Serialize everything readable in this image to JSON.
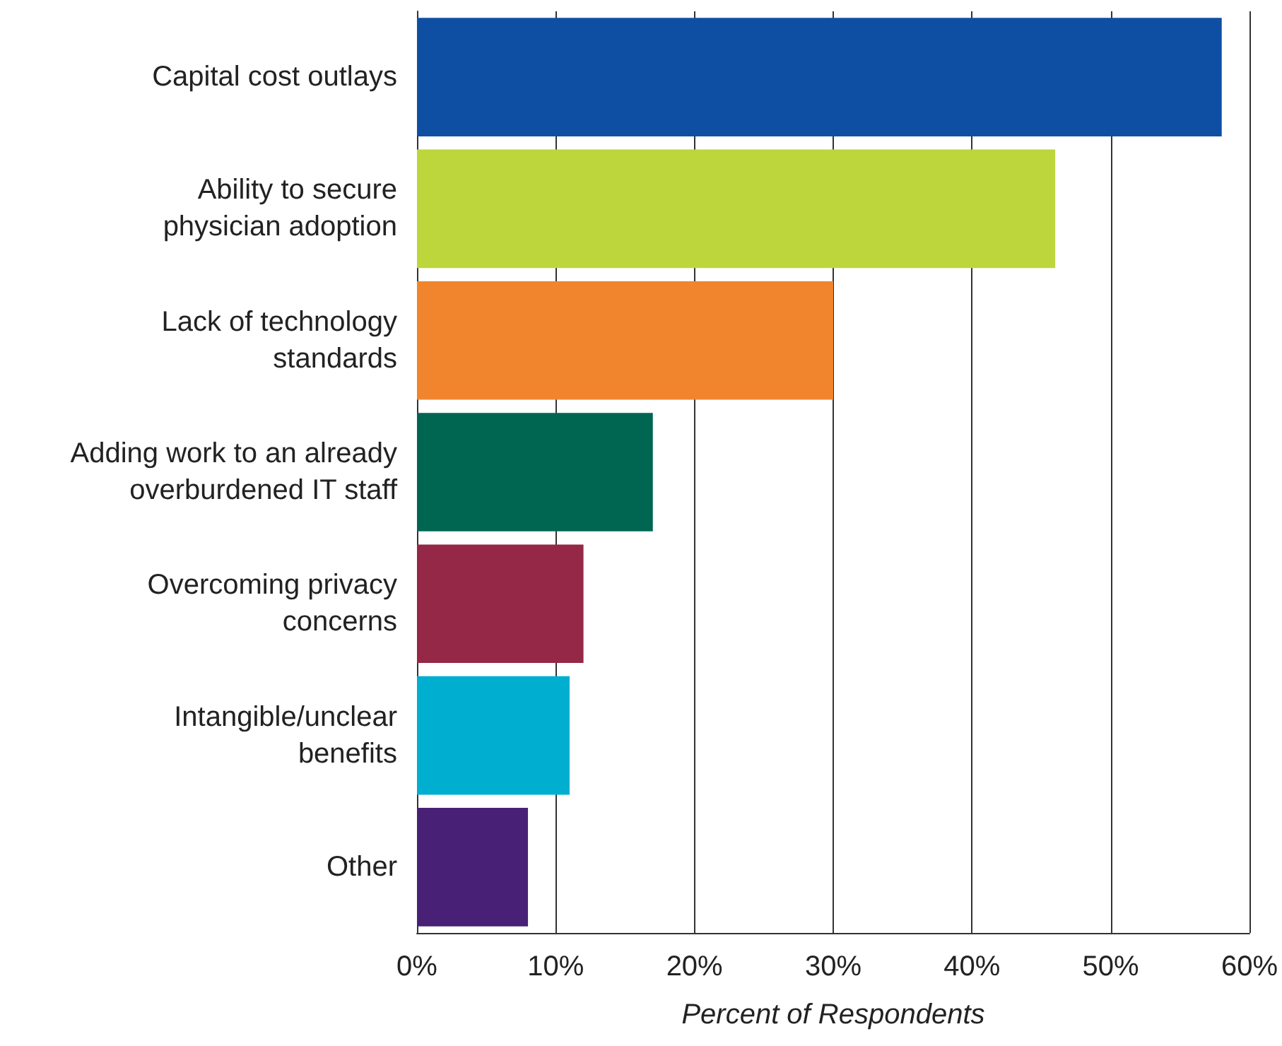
{
  "chart_data": {
    "type": "bar",
    "orientation": "horizontal",
    "xlabel": "Percent of Respondents",
    "categories": [
      "Capital cost outlays",
      "Ability to secure\nphysician adoption",
      "Lack of technology\nstandards",
      "Adding work to an already\noverburdened IT staff",
      "Overcoming privacy\nconcerns",
      "Intangible/unclear\nbenefits",
      "Other"
    ],
    "values": [
      58,
      46,
      30,
      17,
      12,
      11,
      8
    ],
    "colors": [
      "#0f4fa3",
      "#bdd63c",
      "#f0852d",
      "#006652",
      "#952846",
      "#00aed0",
      "#482177"
    ],
    "xlim": [
      0,
      60
    ],
    "xticks": [
      {
        "value": 0,
        "label": "0%"
      },
      {
        "value": 10,
        "label": "10%"
      },
      {
        "value": 20,
        "label": "20%"
      },
      {
        "value": 30,
        "label": "30%"
      },
      {
        "value": 40,
        "label": "40%"
      },
      {
        "value": 50,
        "label": "50%"
      },
      {
        "value": 60,
        "label": "60%"
      }
    ],
    "grid": "x"
  }
}
